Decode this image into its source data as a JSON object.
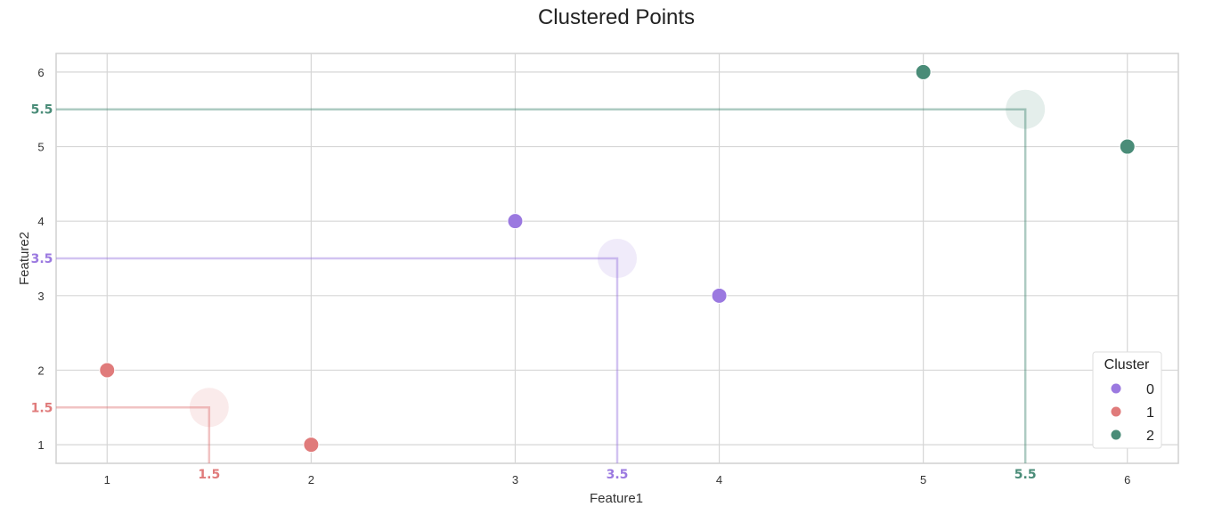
{
  "chart_data": {
    "type": "scatter",
    "title": "Clustered Points",
    "xlabel": "Feature1",
    "ylabel": "Feature2",
    "xlim": [
      0.75,
      6.25
    ],
    "ylim": [
      0.75,
      6.25
    ],
    "xticks": [
      "1",
      "2",
      "3",
      "4",
      "5",
      "6"
    ],
    "yticks": [
      "1",
      "2",
      "3",
      "4",
      "5",
      "6"
    ],
    "grid": true,
    "legend": {
      "title": "Cluster",
      "position": "bottom-right"
    },
    "series": [
      {
        "name": "0",
        "color": "#9b79e0",
        "points": [
          {
            "x": 3,
            "y": 4
          },
          {
            "x": 4,
            "y": 3
          }
        ],
        "centroid": {
          "x": 3.5,
          "y": 3.5,
          "label": "3.5"
        }
      },
      {
        "name": "1",
        "color": "#e07b7b",
        "points": [
          {
            "x": 1,
            "y": 2
          },
          {
            "x": 2,
            "y": 1
          }
        ],
        "centroid": {
          "x": 1.5,
          "y": 1.5,
          "label": "1.5"
        }
      },
      {
        "name": "2",
        "color": "#4a8c78",
        "points": [
          {
            "x": 5,
            "y": 6
          },
          {
            "x": 6,
            "y": 5
          }
        ],
        "centroid": {
          "x": 5.5,
          "y": 5.5,
          "label": "5.5"
        }
      }
    ]
  }
}
